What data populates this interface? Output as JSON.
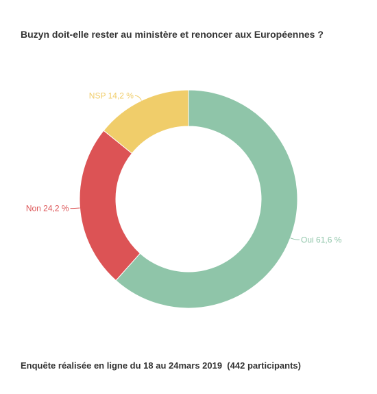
{
  "chart_data": {
    "type": "pie",
    "title": "Buzyn doit-elle rester au ministère et renoncer aux Européennes ?",
    "slices": [
      {
        "label": "Oui",
        "value": 61.6,
        "display": "Oui 61,6 %",
        "color": "#8fc5a9",
        "label_side": "right"
      },
      {
        "label": "Non",
        "value": 24.2,
        "display": "Non 24,2 %",
        "color": "#dc5355",
        "label_side": "left"
      },
      {
        "label": "NSP",
        "value": 14.2,
        "display": "NSP 14,2 %",
        "color": "#f0cd6a",
        "label_side": "top-left"
      }
    ],
    "donut": true,
    "legend": "none"
  },
  "footnote": "Enquête réalisée en ligne du 18 au 24mars 2019  (442 participants)"
}
